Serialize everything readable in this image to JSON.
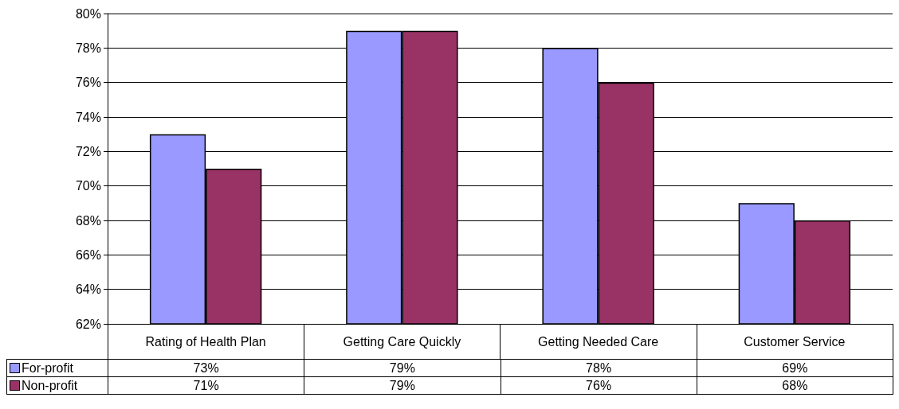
{
  "chart_data": {
    "type": "bar",
    "categories": [
      "Rating of Health Plan",
      "Getting Care Quickly",
      "Getting Needed Care",
      "Customer Service"
    ],
    "series": [
      {
        "name": "For-profit",
        "color": "#9999ff",
        "values": [
          73,
          79,
          78,
          69
        ],
        "value_labels": [
          "73%",
          "79%",
          "78%",
          "69%"
        ]
      },
      {
        "name": "Non-profit",
        "color": "#993366",
        "values": [
          71,
          79,
          76,
          68
        ],
        "value_labels": [
          "71%",
          "79%",
          "76%",
          "68%"
        ]
      }
    ],
    "ylim": [
      62,
      80
    ],
    "yticks": [
      {
        "value": 62,
        "label": "62%"
      },
      {
        "value": 64,
        "label": "64%"
      },
      {
        "value": 66,
        "label": "66%"
      },
      {
        "value": 68,
        "label": "68%"
      },
      {
        "value": 70,
        "label": "70%"
      },
      {
        "value": 72,
        "label": "72%"
      },
      {
        "value": 74,
        "label": "74%"
      },
      {
        "value": 76,
        "label": "76%"
      },
      {
        "value": 78,
        "label": "78%"
      },
      {
        "value": 80,
        "label": "80%"
      }
    ],
    "grid": "y",
    "legend": "bottom left"
  }
}
